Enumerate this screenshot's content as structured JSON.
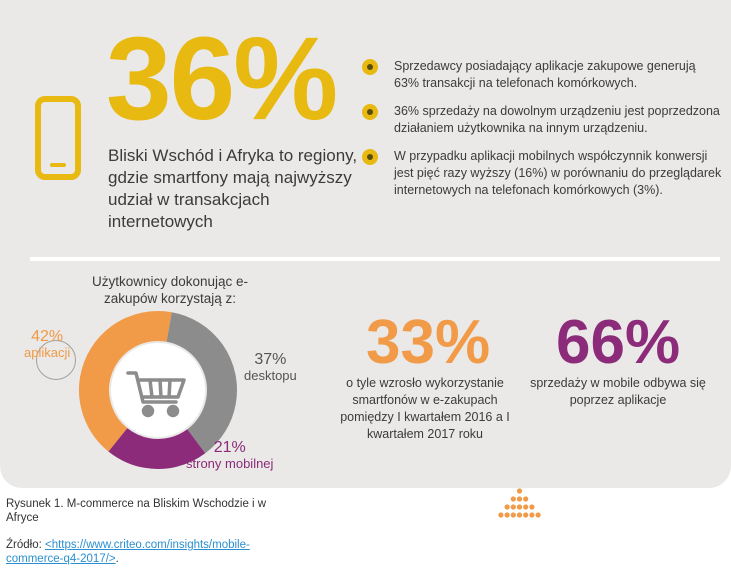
{
  "headline": {
    "percent": "36%",
    "text": "Bliski Wschód i Afryka to regiony, gdzie smartfony mają najwyższy udział w transakcjach internetowych"
  },
  "bullets": [
    "Sprzedawcy posiadający aplikacje zakupowe generują 63% transakcji na telefonach komórkowych.",
    "36% sprzedaży na dowolnym urządzeniu jest poprzedzona działaniem użytkownika na innym urządzeniu.",
    "W przypadku aplikacji mobilnych współczynnik konwersji jest pięć razy wyższy (16%) w porównaniu do przeglądarek internetowych na telefonach komórkowych (3%)."
  ],
  "users_title": "Użytkownicy dokonując e-zakupów korzystają z:",
  "segments": [
    {
      "percent": "42%",
      "label": "aplikacji",
      "value": 42,
      "color": "#f19a47"
    },
    {
      "percent": "37%",
      "label": "desktopu",
      "value": 37,
      "color": "#8c8c8c"
    },
    {
      "percent": "21%",
      "label": "strony mobilnej",
      "value": 21,
      "color": "#8b2b7a"
    }
  ],
  "stat33": {
    "percent": "33%",
    "text": "o tyle wzrosło wykorzystanie smartfonów w e-zakupach pomiędzy I kwartałem 2016 a I kwartałem 2017 roku"
  },
  "stat66": {
    "percent": "66%",
    "text": "sprzedaży w mobile odbywa się poprzez aplikacje"
  },
  "caption": "Rysunek 1. M-commerce na Bliskim Wschodzie i w Afryce",
  "source": {
    "label": "Źródło: ",
    "link": "<https://www.criteo.com/insights/mobile-commerce-q4-2017/>",
    "suffix": "."
  },
  "icons": [
    "smartphone-icon",
    "shopping-cart-icon",
    "criteo-logo-icon"
  ],
  "colors": {
    "yellow": "#e8b910",
    "orange": "#f19a47",
    "purple": "#8b2b7a",
    "gray": "#8c8c8c",
    "panel": "#eae9e7"
  }
}
